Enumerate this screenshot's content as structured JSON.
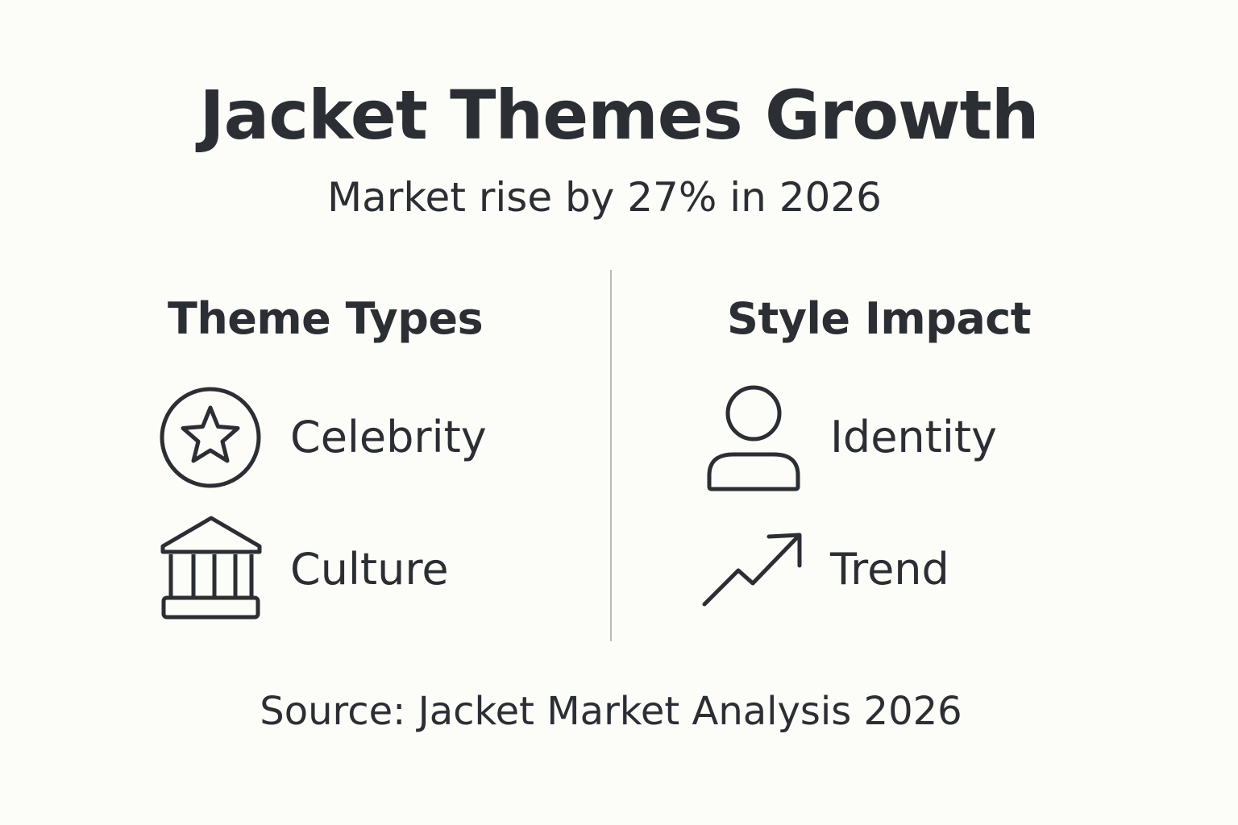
{
  "title": "Jacket Themes Growth",
  "subtitle": "Market rise by 27% in 2026",
  "colors": {
    "background": "#fcfcf9",
    "text": "#2b2e33",
    "divider": "#b9b9b9"
  },
  "left_column": {
    "heading": "Theme Types",
    "items": [
      {
        "label": "Celebrity",
        "icon": "star-in-circle-icon"
      },
      {
        "label": "Culture",
        "icon": "classical-building-icon"
      }
    ]
  },
  "right_column": {
    "heading": "Style Impact",
    "items": [
      {
        "label": "Identity",
        "icon": "person-icon"
      },
      {
        "label": "Trend",
        "icon": "trending-up-arrow-icon"
      }
    ]
  },
  "source": "Source: Jacket Market Analysis 2026"
}
